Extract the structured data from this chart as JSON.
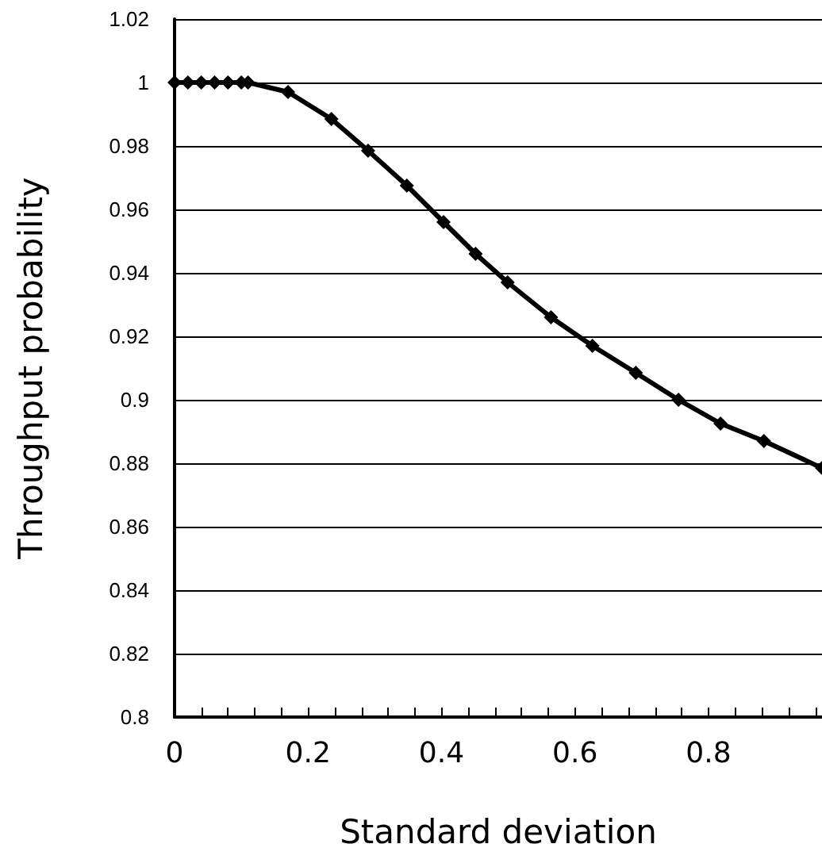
{
  "chart_data": {
    "type": "line",
    "xlabel": "Standard deviation",
    "ylabel": "Throughput probability",
    "series": [
      {
        "color": "#000000",
        "x": [
          0,
          0.02,
          0.04,
          0.06,
          0.08,
          0.1,
          0.11,
          0.17,
          0.235,
          0.29,
          0.348,
          0.403,
          0.451,
          0.499,
          0.564,
          0.626,
          0.691,
          0.755,
          0.818,
          0.883,
          0.97
        ],
        "values": [
          1,
          1,
          1,
          1,
          1,
          1,
          1,
          0.997,
          0.9885,
          0.9785,
          0.9675,
          0.956,
          0.946,
          0.937,
          0.926,
          0.917,
          0.9085,
          0.9,
          0.8925,
          0.887,
          0.8785
        ]
      }
    ],
    "xlim": [
      0,
      0.97
    ],
    "xticks": [
      0,
      {
        "value": 0.04,
        "label": null
      },
      {
        "value": 0.08,
        "label": null
      },
      {
        "value": 0.12,
        "label": null
      },
      {
        "value": 0.16,
        "label": null
      },
      0.2,
      {
        "value": 0.24,
        "label": null
      },
      {
        "value": 0.28,
        "label": null
      },
      {
        "value": 0.32,
        "label": null
      },
      {
        "value": 0.36,
        "label": null
      },
      0.4,
      {
        "value": 0.44,
        "label": null
      },
      {
        "value": 0.48,
        "label": null
      },
      {
        "value": 0.52,
        "label": null
      },
      {
        "value": 0.56,
        "label": null
      },
      0.6,
      {
        "value": 0.64,
        "label": null
      },
      {
        "value": 0.68,
        "label": null
      },
      {
        "value": 0.72,
        "label": null
      },
      {
        "value": 0.76,
        "label": null
      },
      0.8,
      {
        "value": 0.84,
        "label": null
      },
      {
        "value": 0.88,
        "label": null
      },
      {
        "value": 0.92,
        "label": null
      },
      {
        "value": 0.96,
        "label": null
      }
    ],
    "ylim": [
      0.8,
      1.02
    ],
    "yticks": [
      0.8,
      0.82,
      0.84,
      0.86,
      0.88,
      0.9,
      0.92,
      0.94,
      0.96,
      0.98,
      1,
      1.02
    ],
    "grid": "y",
    "marker": "diamond",
    "line_style": "solid"
  }
}
